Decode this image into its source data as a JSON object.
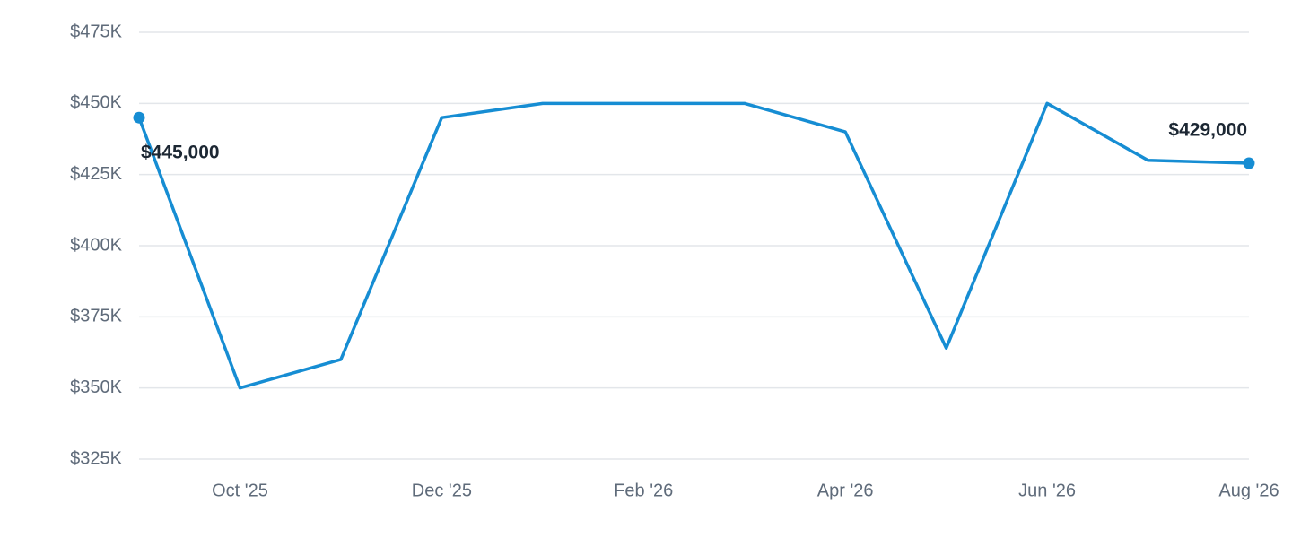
{
  "chart_data": {
    "type": "line",
    "categories": [
      null,
      "Oct '25",
      null,
      "Dec '25",
      null,
      "Feb '26",
      null,
      "Apr '26",
      null,
      "Jun '26",
      null,
      "Aug '26"
    ],
    "series": [
      {
        "color": "#168dd3",
        "values": [
          445000,
          350000,
          360000,
          445000,
          450000,
          450000,
          450000,
          440000,
          364000,
          450000,
          430000,
          429000
        ],
        "value_labels": [
          "$445,000",
          null,
          null,
          null,
          null,
          null,
          null,
          null,
          null,
          null,
          null,
          "$429,000"
        ]
      }
    ],
    "ylim": [
      325000,
      475000
    ],
    "yticks": [
      {
        "value": 325000,
        "label": "$325K"
      },
      {
        "value": 350000,
        "label": "$350K"
      },
      {
        "value": 375000,
        "label": "$375K"
      },
      {
        "value": 400000,
        "label": "$400K"
      },
      {
        "value": 425000,
        "label": "$425K"
      },
      {
        "value": 450000,
        "label": "$450K"
      },
      {
        "value": 475000,
        "label": "$475K"
      }
    ],
    "grid": true
  }
}
